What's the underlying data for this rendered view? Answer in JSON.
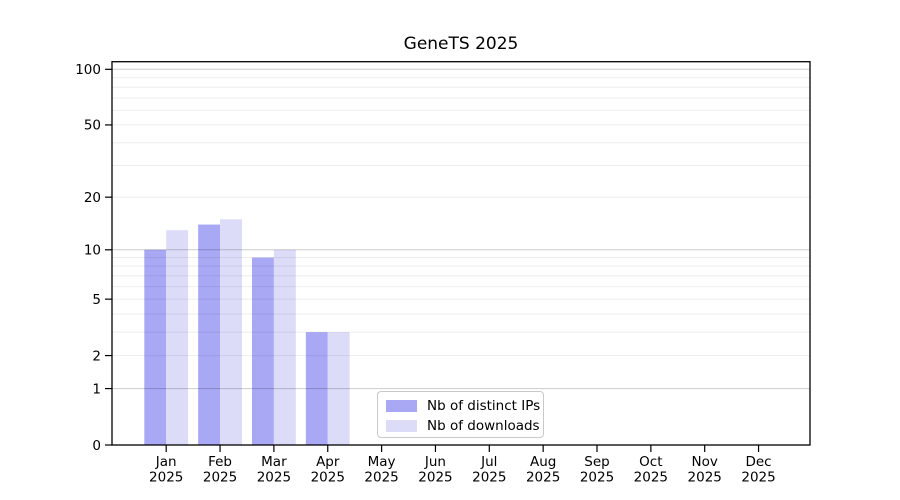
{
  "chart_data": {
    "type": "bar",
    "title": "GeneTS 2025",
    "x_tick_year": "2025",
    "categories": [
      "Jan",
      "Feb",
      "Mar",
      "Apr",
      "May",
      "Jun",
      "Jul",
      "Aug",
      "Sep",
      "Oct",
      "Nov",
      "Dec"
    ],
    "series": [
      {
        "name": "Nb of distinct IPs",
        "color": "#a8a8f5",
        "values": [
          10,
          14,
          9,
          3,
          0,
          0,
          0,
          0,
          0,
          0,
          0,
          0
        ]
      },
      {
        "name": "Nb of downloads",
        "color": "#dcdcf9",
        "values": [
          13,
          15,
          10,
          3,
          0,
          0,
          0,
          0,
          0,
          0,
          0,
          0
        ]
      }
    ],
    "yscale": "log1p",
    "yticks": [
      0,
      1,
      2,
      5,
      10,
      20,
      50,
      100
    ],
    "ylim": [
      0,
      110
    ],
    "xlabel": "",
    "ylabel": "",
    "grid": "horizontal, drawn above bars, minor lines at 2-9 and 20-90",
    "legend_position": "lower center-left inside plot",
    "background_color": "#ffffff",
    "axis_color": "#000000"
  }
}
